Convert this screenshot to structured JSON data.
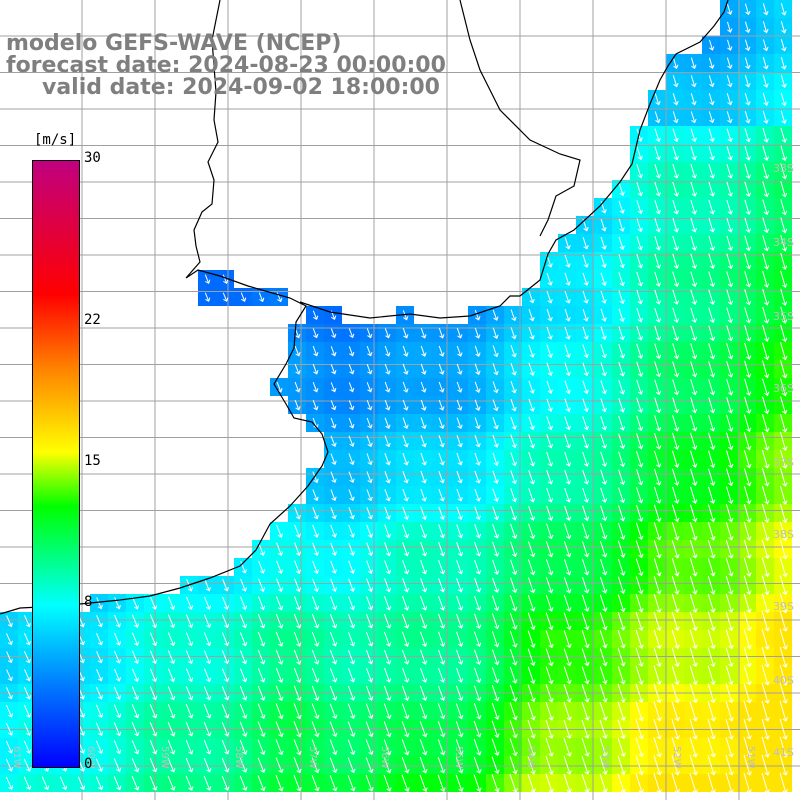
{
  "title": {
    "line1": "modelo GEFS-WAVE (NCEP)",
    "line2": "forecast date: 2024-08-23 00:00:00",
    "line3": "valid date: 2024-09-02 18:00:00"
  },
  "colorbar": {
    "unit": "[m/s]",
    "tick_labels": [
      "30",
      "22",
      "15",
      "8",
      "0"
    ],
    "tick_values": [
      30,
      22,
      15,
      8,
      0
    ],
    "min": 0,
    "max": 30,
    "colors": [
      "#0000ff",
      "#0080ff",
      "#00ffff",
      "#00ff00",
      "#ffff00",
      "#ff8000",
      "#ff0000",
      "#c0007f"
    ]
  },
  "map": {
    "lat_labels": [
      "33S",
      "34S",
      "35S",
      "36S",
      "37S",
      "38S",
      "39S",
      "40S",
      "41S"
    ],
    "lon_labels": [
      "61W",
      "60W",
      "59W",
      "58W",
      "57W",
      "56W",
      "55W",
      "54W",
      "53W",
      "52W",
      "51W"
    ],
    "land_color": "#ffffff",
    "grid_color": "#a0a0a0",
    "arrow_color": "#ffffff",
    "coast_color": "#000000",
    "wind_direction": "toward south-southeast"
  }
}
